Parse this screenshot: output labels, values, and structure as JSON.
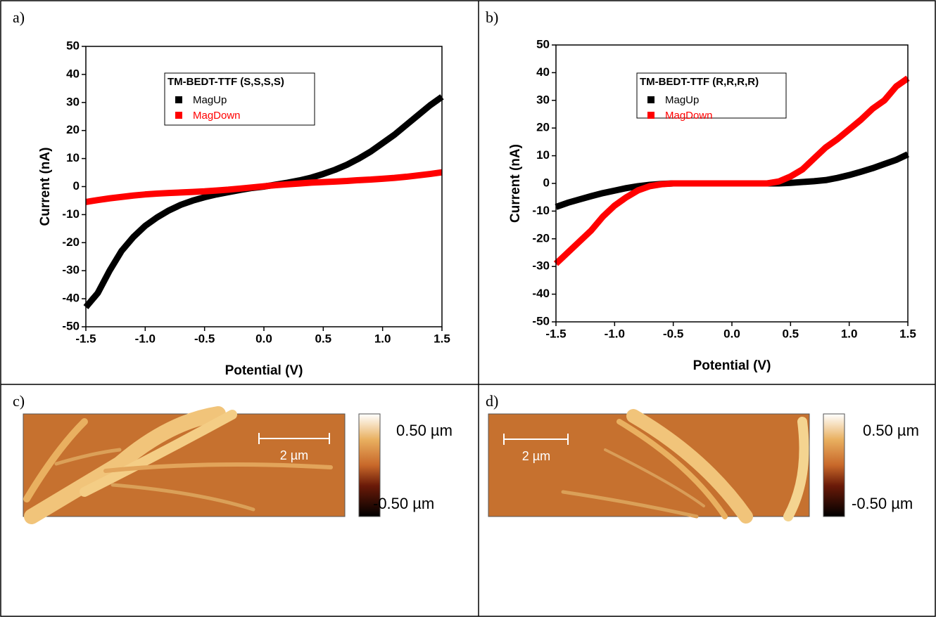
{
  "chart_data": [
    {
      "type": "line",
      "label": "a)",
      "legend_title": "TM-BEDT-TTF (S,S,S,S)",
      "xlabel": "Potential (V)",
      "ylabel": "Current (nA)",
      "x": [
        -1.5,
        -1.4,
        -1.3,
        -1.2,
        -1.1,
        -1.0,
        -0.9,
        -0.8,
        -0.7,
        -0.6,
        -0.5,
        -0.4,
        -0.3,
        -0.2,
        -0.1,
        0,
        0.1,
        0.2,
        0.3,
        0.4,
        0.5,
        0.6,
        0.7,
        0.8,
        0.9,
        1.0,
        1.1,
        1.2,
        1.3,
        1.4,
        1.5
      ],
      "series": [
        {
          "name": "MagUp",
          "color": "#000000",
          "values": [
            -43,
            -38,
            -30,
            -23,
            -18,
            -14,
            -11,
            -8.5,
            -6.5,
            -5,
            -3.8,
            -2.8,
            -2,
            -1.2,
            -0.5,
            0,
            0.7,
            1.4,
            2.2,
            3.2,
            4.5,
            6,
            7.8,
            10,
            12.5,
            15.5,
            18.5,
            22,
            25.5,
            29,
            32
          ]
        },
        {
          "name": "MagDown",
          "color": "#ff0000",
          "values": [
            -5.5,
            -4.8,
            -4.2,
            -3.7,
            -3.2,
            -2.8,
            -2.5,
            -2.3,
            -2.1,
            -1.9,
            -1.7,
            -1.4,
            -1.1,
            -0.7,
            -0.3,
            0.1,
            0.5,
            0.8,
            1.1,
            1.4,
            1.6,
            1.8,
            2.0,
            2.3,
            2.5,
            2.8,
            3.1,
            3.5,
            4.0,
            4.5,
            5.1
          ]
        }
      ],
      "xlim": [
        -1.5,
        1.5
      ],
      "xticks": [
        -1.5,
        {
          "value": -1,
          "label": "-1.0"
        },
        -0.5,
        {
          "value": 0,
          "label": "0.0"
        },
        0.5,
        {
          "value": 1,
          "label": "1.0"
        },
        1.5
      ],
      "ylim": [
        -50,
        50
      ],
      "yticks": [
        -50,
        -40,
        -30,
        -20,
        -10,
        0,
        10,
        20,
        30,
        40,
        50
      ]
    },
    {
      "type": "line",
      "label": "b)",
      "legend_title": "TM-BEDT-TTF (R,R,R,R)",
      "xlabel": "Potential (V)",
      "ylabel": "Current (nA)",
      "x": [
        -1.5,
        -1.4,
        -1.3,
        -1.2,
        -1.1,
        -1.0,
        -0.9,
        -0.8,
        -0.7,
        -0.6,
        -0.5,
        -0.4,
        -0.3,
        -0.2,
        -0.1,
        0,
        0.1,
        0.2,
        0.3,
        0.4,
        0.5,
        0.6,
        0.7,
        0.8,
        0.9,
        1.0,
        1.1,
        1.2,
        1.3,
        1.4,
        1.5
      ],
      "series": [
        {
          "name": "MagUp",
          "color": "#000000",
          "values": [
            -8.5,
            -7,
            -5.8,
            -4.6,
            -3.5,
            -2.6,
            -1.7,
            -1,
            -0.5,
            -0.2,
            0,
            0,
            0,
            0,
            0,
            0,
            0,
            0,
            0,
            0,
            0.2,
            0.5,
            0.8,
            1.2,
            2,
            3,
            4.2,
            5.5,
            7,
            8.5,
            10.5
          ]
        },
        {
          "name": "MagDown",
          "color": "#ff0000",
          "values": [
            -29,
            -25,
            -21,
            -17,
            -12,
            -8,
            -5,
            -2.5,
            -1,
            -0.3,
            0,
            0,
            0,
            0,
            0,
            0,
            0,
            0,
            0,
            0.7,
            2.5,
            5,
            9,
            13,
            16,
            19.5,
            23,
            27,
            30,
            35,
            38
          ]
        }
      ],
      "xlim": [
        -1.5,
        1.5
      ],
      "xticks": [
        -1.5,
        {
          "value": -1,
          "label": "-1.0"
        },
        -0.5,
        {
          "value": 0,
          "label": "0.0"
        },
        0.5,
        {
          "value": 1,
          "label": "1.0"
        },
        1.5
      ],
      "ylim": [
        -50,
        50
      ],
      "yticks": [
        -50,
        -40,
        -30,
        -20,
        -10,
        0,
        10,
        20,
        30,
        40,
        50
      ]
    }
  ],
  "images": [
    {
      "label": "c)",
      "scale_bar": "2 µm",
      "colorbar_max": "0.50 µm",
      "colorbar_min": "-0.50 µm"
    },
    {
      "label": "d)",
      "scale_bar": "2 µm",
      "colorbar_max": "0.50 µm",
      "colorbar_min": "-0.50 µm"
    }
  ]
}
